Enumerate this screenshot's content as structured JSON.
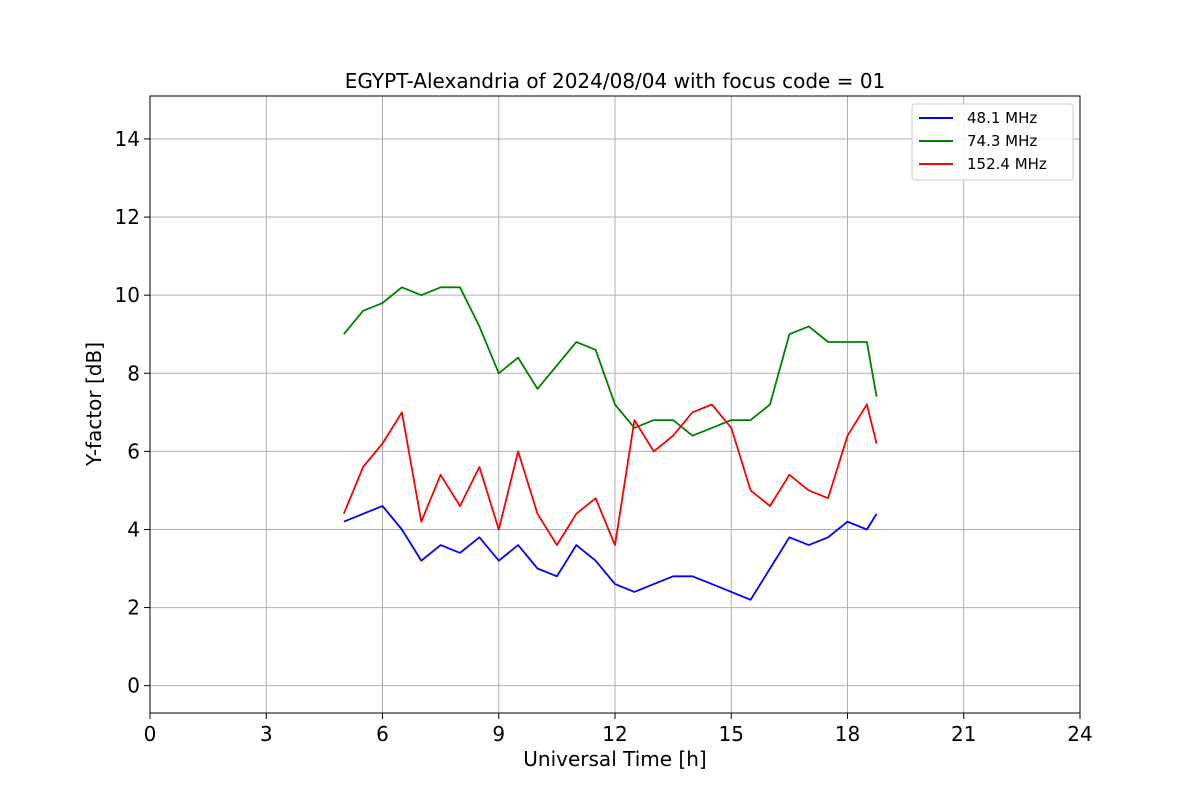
{
  "chart_data": {
    "type": "line",
    "title": "EGYPT-Alexandria of 2024/08/04 with focus code = 01",
    "xlabel": "Universal Time [h]",
    "ylabel": "Y-factor [dB]",
    "xlim": [
      0,
      24
    ],
    "ylim": [
      -0.7,
      15.1
    ],
    "xticks": [
      0,
      3,
      6,
      9,
      12,
      15,
      18,
      21,
      24
    ],
    "yticks": [
      0,
      2,
      4,
      6,
      8,
      10,
      12,
      14
    ],
    "xtick_labels": [
      "0",
      "3",
      "6",
      "9",
      "12",
      "15",
      "18",
      "21",
      "24"
    ],
    "ytick_labels": [
      "0",
      "2",
      "4",
      "6",
      "8",
      "10",
      "12",
      "14"
    ],
    "grid": true,
    "legend_position": "top-right",
    "series": [
      {
        "name": " 48.1 MHz",
        "color": "#0000ff",
        "x": [
          5.0,
          5.5,
          6.0,
          6.5,
          7.0,
          7.5,
          8.0,
          8.5,
          9.0,
          9.5,
          10.0,
          10.5,
          11.0,
          11.5,
          12.0,
          12.5,
          13.0,
          13.5,
          14.0,
          14.5,
          15.0,
          15.5,
          16.0,
          16.5,
          17.0,
          17.5,
          18.0,
          18.5,
          18.75
        ],
        "y": [
          4.2,
          4.4,
          4.6,
          4.0,
          3.2,
          3.6,
          3.4,
          3.8,
          3.2,
          3.6,
          3.0,
          2.8,
          3.6,
          3.2,
          2.6,
          2.4,
          2.6,
          2.8,
          2.8,
          2.6,
          2.4,
          2.2,
          3.0,
          3.8,
          3.6,
          3.8,
          4.2,
          4.0,
          4.4
        ]
      },
      {
        "name": " 74.3 MHz",
        "color": "#008000",
        "x": [
          5.0,
          5.5,
          6.0,
          6.5,
          7.0,
          7.5,
          8.0,
          8.5,
          9.0,
          9.5,
          10.0,
          10.5,
          11.0,
          11.5,
          12.0,
          12.5,
          13.0,
          13.5,
          14.0,
          14.5,
          15.0,
          15.5,
          16.0,
          16.5,
          17.0,
          17.5,
          18.0,
          18.5,
          18.75
        ],
        "y": [
          9.0,
          9.6,
          9.8,
          10.2,
          10.0,
          10.2,
          10.2,
          9.2,
          8.0,
          8.4,
          7.6,
          8.2,
          8.8,
          8.6,
          7.2,
          6.6,
          6.8,
          6.8,
          6.4,
          6.6,
          6.8,
          6.8,
          7.2,
          9.0,
          9.2,
          8.8,
          8.8,
          8.8,
          7.4
        ]
      },
      {
        "name": "152.4 MHz",
        "color": "#ff0000",
        "x": [
          5.0,
          5.5,
          6.0,
          6.5,
          7.0,
          7.5,
          8.0,
          8.5,
          9.0,
          9.5,
          10.0,
          10.5,
          11.0,
          11.5,
          12.0,
          12.5,
          13.0,
          13.5,
          14.0,
          14.5,
          15.0,
          15.5,
          16.0,
          16.5,
          17.0,
          17.5,
          18.0,
          18.5,
          18.75
        ],
        "y": [
          4.4,
          5.6,
          6.2,
          7.0,
          4.2,
          5.4,
          4.6,
          5.6,
          4.0,
          6.0,
          4.4,
          3.6,
          4.4,
          4.8,
          3.6,
          6.8,
          6.0,
          6.4,
          7.0,
          7.2,
          6.6,
          5.0,
          4.6,
          5.4,
          5.0,
          4.8,
          6.4,
          7.2,
          6.2
        ]
      }
    ]
  }
}
